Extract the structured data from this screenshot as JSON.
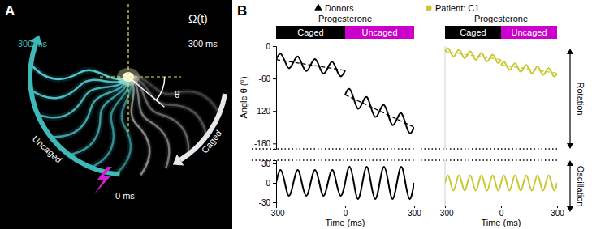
{
  "chart_data": [
    {
      "type": "line",
      "y_label": "Angle θ (°)",
      "xlim": [
        -300,
        300
      ],
      "ylim": [
        -190,
        0
      ],
      "yticks": [
        -180,
        -120,
        -60,
        0
      ],
      "tick_labels": "y",
      "series": [
        {
          "color": "#000000",
          "line_style": "solid",
          "x": [
            -300,
            -281,
            -262,
            -244,
            -225,
            -206,
            -188,
            -169,
            -150,
            -131,
            -112,
            -94,
            -75,
            -56,
            -38,
            -19,
            0
          ],
          "values": [
            -25,
            -14,
            -28,
            -41,
            -30,
            -19,
            -33,
            -46,
            -35,
            -24,
            -38,
            -51,
            -40,
            -29,
            -43,
            -56,
            -45
          ]
        },
        {
          "color": "#000000",
          "line_style": "solid",
          "x": [
            0,
            19,
            38,
            56,
            75,
            94,
            112,
            131,
            150,
            169,
            188,
            206,
            225,
            244,
            262,
            281,
            300
          ],
          "values": [
            -90,
            -79,
            -98,
            -116,
            -105,
            -94,
            -113,
            -131,
            -120,
            -109,
            -128,
            -146,
            -135,
            -124,
            -143,
            -161,
            -150
          ]
        },
        {
          "color": "#000000",
          "line_style": "dashed",
          "x": [
            -300,
            0
          ],
          "values": [
            -25,
            -45
          ]
        },
        {
          "color": "#000000",
          "line_style": "dashed",
          "x": [
            0,
            300
          ],
          "values": [
            -90,
            -150
          ]
        }
      ]
    },
    {
      "type": "line",
      "x_label": "Time (ms)",
      "xlim": [
        -300,
        300
      ],
      "ylim": [
        -35,
        35
      ],
      "xticks": [
        -300,
        0,
        300
      ],
      "yticks": [
        -30,
        0,
        30
      ],
      "tick_labels": true,
      "series": [
        {
          "color": "#000000",
          "line_style": "solid",
          "x": [
            -300,
            -281,
            -262,
            -244,
            -225,
            -206,
            -188,
            -169,
            -150,
            -131,
            -112,
            -94,
            -75,
            -56,
            -38,
            -19,
            0
          ],
          "values": [
            0,
            20,
            0,
            -20,
            0,
            20,
            0,
            -20,
            0,
            20,
            0,
            -20,
            0,
            20,
            0,
            -20,
            0
          ]
        },
        {
          "color": "#000000",
          "line_style": "solid",
          "x": [
            0,
            19,
            38,
            56,
            75,
            94,
            112,
            131,
            150,
            169,
            188,
            206,
            225,
            244,
            262,
            281,
            300
          ],
          "values": [
            0,
            25,
            0,
            -25,
            0,
            25,
            0,
            -25,
            0,
            25,
            0,
            -25,
            0,
            25,
            0,
            -25,
            0
          ]
        }
      ]
    },
    {
      "type": "line",
      "xlim": [
        -300,
        300
      ],
      "ylim": [
        -190,
        0
      ],
      "tick_labels": false,
      "series": [
        {
          "color": "#c8c832",
          "line_style": "solid",
          "x": [
            -300,
            -285,
            -270,
            -255,
            -240,
            -225,
            -210,
            -195,
            -180,
            -165,
            -150,
            -135,
            -120,
            -105,
            -90,
            -75,
            -60,
            -45,
            -30,
            -15,
            0
          ],
          "values": [
            -10,
            -3.8,
            -11.5,
            -19.3,
            -13,
            -6.8,
            -14.5,
            -22.3,
            -16,
            -9.8,
            -17.5,
            -25.3,
            -19,
            -12.8,
            -20.5,
            -28.3,
            -22,
            -15.8,
            -23.5,
            -31.3,
            -25
          ]
        },
        {
          "color": "#c8c832",
          "line_style": "solid",
          "x": [
            0,
            15,
            30,
            45,
            60,
            75,
            90,
            105,
            120,
            135,
            150,
            165,
            180,
            195,
            210,
            225,
            240,
            255,
            270,
            285,
            300
          ],
          "values": [
            -35,
            -28.8,
            -36.5,
            -44.3,
            -38,
            -31.8,
            -39.5,
            -47.3,
            -41,
            -34.8,
            -42.5,
            -50.3,
            -44,
            -37.8,
            -45.5,
            -53.3,
            -47,
            -40.8,
            -48.5,
            -56.3,
            -50
          ]
        },
        {
          "color": "#c8c832",
          "line_style": "dashed",
          "x": [
            -300,
            0
          ],
          "values": [
            -10,
            -25
          ]
        },
        {
          "color": "#c8c832",
          "line_style": "dashed",
          "x": [
            0,
            300
          ],
          "values": [
            -35,
            -50
          ]
        }
      ]
    },
    {
      "type": "line",
      "x_label": "Time (ms)",
      "xlim": [
        -300,
        300
      ],
      "ylim": [
        -35,
        35
      ],
      "xticks": [
        -300,
        0,
        300
      ],
      "tick_labels": "x",
      "series": [
        {
          "color": "#c8c832",
          "line_style": "solid",
          "x": [
            -300,
            -285,
            -270,
            -255,
            -240,
            -225,
            -210,
            -195,
            -180,
            -165,
            -150,
            -135,
            -120,
            -105,
            -90,
            -75,
            -60,
            -45,
            -30,
            -15,
            0
          ],
          "values": [
            0,
            12,
            0,
            -12,
            0,
            12,
            0,
            -12,
            0,
            12,
            0,
            -12,
            0,
            12,
            0,
            -12,
            0,
            12,
            0,
            -12,
            0
          ]
        },
        {
          "color": "#c8c832",
          "line_style": "solid",
          "x": [
            0,
            15,
            30,
            45,
            60,
            75,
            90,
            105,
            120,
            135,
            150,
            165,
            180,
            195,
            210,
            225,
            240,
            255,
            270,
            285,
            300
          ],
          "values": [
            0,
            12,
            0,
            -12,
            0,
            12,
            0,
            -12,
            0,
            12,
            0,
            -12,
            0,
            12,
            0,
            -12,
            0,
            12,
            0,
            -12,
            0
          ]
        }
      ]
    }
  ],
  "figure": {
    "panel_a": {
      "label": "A",
      "title": "Ω(t)",
      "time_start": "-300 ms",
      "time_end": "300 ms",
      "time_zero": "0 ms",
      "angle": "θ",
      "caged": "Caged",
      "uncaged": "Uncaged"
    },
    "panel_b": {
      "label": "B",
      "legend": [
        {
          "name": "Donors",
          "marker": "triangle",
          "color": "#000000"
        },
        {
          "name": "Patient: C1",
          "marker": "circle",
          "color": "#c8c832"
        }
      ],
      "columns": [
        {
          "title": "Progesterone",
          "phases": [
            "Caged",
            "Uncaged"
          ]
        },
        {
          "title": "Progesterone",
          "phases": [
            "Caged",
            "Uncaged"
          ]
        }
      ],
      "side_labels": [
        "Rotation",
        "Oscillation"
      ]
    }
  }
}
